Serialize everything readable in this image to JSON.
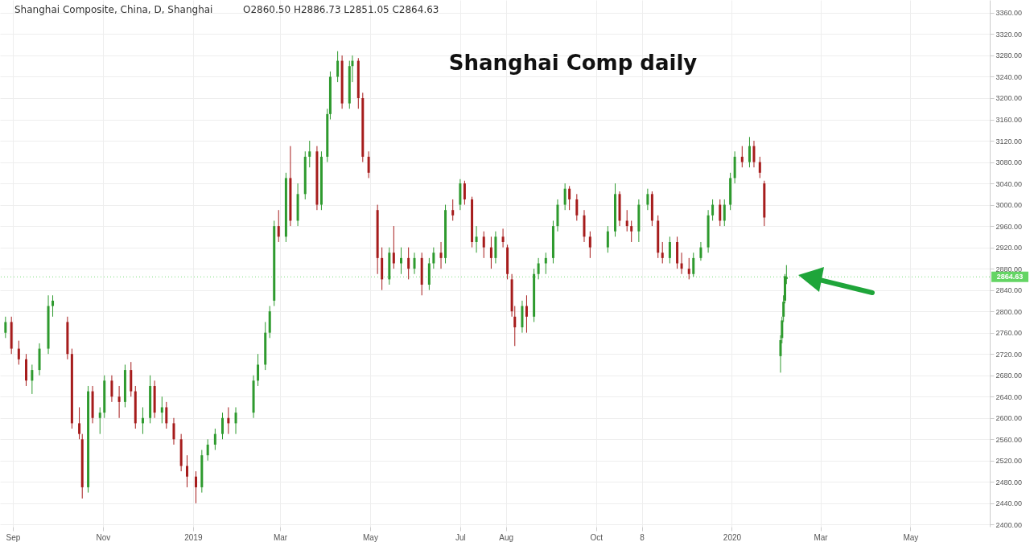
{
  "chart_data": {
    "type": "candlestick",
    "title": "Shanghai Comp daily",
    "annotations": [
      "Shanghai Composite, China, D, Shanghai",
      "O2860.50 H2886.73 L2851.05 C2864.63"
    ],
    "ref_lines": [
      {
        "axis": "y",
        "value": 2864.63,
        "label": "2864.63",
        "color": "#22c322"
      }
    ],
    "colors": [
      "#2e9a2e",
      "#a61c1c",
      "#a61c1c",
      "#a61c1c",
      "#2e9a2e",
      "#2e9a2e",
      "#2e9a2e",
      "#2e9a2e",
      "#a61c1c",
      "#a61c1c",
      "#a61c1c",
      "#a61c1c",
      "#2e9a2e",
      "#a61c1c",
      "#2e9a2e",
      "#2e9a2e",
      "#a61c1c",
      "#a61c1c",
      "#2e9a2e",
      "#a61c1c",
      "#a61c1c",
      "#2e9a2e",
      "#2e9a2e",
      "#a61c1c",
      "#2e9a2e",
      "#a61c1c",
      "#a61c1c",
      "#a61c1c",
      "#a61c1c",
      "#a61c1c",
      "#2e9a2e",
      "#2e9a2e",
      "#2e9a2e",
      "#2e9a2e",
      "#a61c1c",
      "#2e9a2e",
      "#2e9a2e",
      "#2e9a2e",
      "#2e9a2e",
      "#2e9a2e",
      "#2e9a2e",
      "#a61c1c",
      "#2e9a2e",
      "#a61c1c",
      "#2e9a2e",
      "#2e9a2e",
      "#2e9a2e",
      "#a61c1c",
      "#2e9a2e",
      "#2e9a2e",
      "#2e9a2e",
      "#2e9a2e",
      "#a61c1c",
      "#2e9a2e",
      "#2e9a2e",
      "#a61c1c",
      "#a61c1c",
      "#a61c1c",
      "#a61c1c",
      "#a61c1c",
      "#2e9a2e",
      "#a61c1c",
      "#2e9a2e",
      "#a61c1c",
      "#2e9a2e",
      "#a61c1c",
      "#2e9a2e",
      "#2e9a2e",
      "#a61c1c",
      "#2e9a2e",
      "#a61c1c",
      "#2e9a2e",
      "#a61c1c",
      "#a61c1c",
      "#2e9a2e",
      "#a61c1c",
      "#a61c1c",
      "#2e9a2e",
      "#a61c1c",
      "#a61c1c",
      "#a61c1c",
      "#a61c1c",
      "#2e9a2e",
      "#a61c1c",
      "#2e9a2e",
      "#2e9a2e",
      "#2e9a2e",
      "#2e9a2e",
      "#2e9a2e",
      "#2e9a2e",
      "#a61c1c",
      "#a61c1c",
      "#a61c1c",
      "#a61c1c",
      "#2e9a2e",
      "#2e9a2e",
      "#a61c1c",
      "#a61c1c",
      "#a61c1c",
      "#2e9a2e",
      "#2e9a2e",
      "#a61c1c",
      "#a61c1c",
      "#a61c1c",
      "#2e9a2e",
      "#a61c1c",
      "#a61c1c",
      "#a61c1c",
      "#2e9a2e",
      "#2e9a2e",
      "#2e9a2e",
      "#2e9a2e",
      "#a61c1c",
      "#2e9a2e",
      "#2e9a2e",
      "#2e9a2e",
      "#a61c1c",
      "#2e9a2e",
      "#a61c1c",
      "#a61c1c",
      "#a61c1c",
      "#2e9a2e",
      "#2e9a2e",
      "#2e9a2e",
      "#2e9a2e",
      "#2e9a2e"
    ],
    "grid": true,
    "xlim": [
      "2018-08-26",
      "2020-06-21"
    ],
    "xticks": [
      {
        "value": "2018-09-01",
        "label": "Sep"
      },
      {
        "value": "2018-11-01",
        "label": "Nov"
      },
      {
        "value": "2019-01-01",
        "label": "2019"
      },
      {
        "value": "2019-03-01",
        "label": "Mar"
      },
      {
        "value": "2019-05-01",
        "label": "May"
      },
      {
        "value": "2019-07-01",
        "label": "Jul"
      },
      {
        "value": "2019-08-01",
        "label": "Aug"
      },
      {
        "value": "2019-10-01",
        "label": "Oct"
      },
      {
        "value": "2019-11-01",
        "label": "8"
      },
      {
        "value": "2020-01-01",
        "label": "2020"
      },
      {
        "value": "2020-03-01",
        "label": "Mar"
      },
      {
        "value": "2020-05-01",
        "label": "May"
      }
    ],
    "ylim": [
      2396,
      3384
    ],
    "yticks": [
      {
        "value": 2400,
        "label": "2400.00"
      },
      {
        "value": 2440,
        "label": "2440.00"
      },
      {
        "value": 2480,
        "label": "2480.00"
      },
      {
        "value": 2520,
        "label": "2520.00"
      },
      {
        "value": 2560,
        "label": "2560.00"
      },
      {
        "value": 2600,
        "label": "2600.00"
      },
      {
        "value": 2640,
        "label": "2640.00"
      },
      {
        "value": 2680,
        "label": "2680.00"
      },
      {
        "value": 2720,
        "label": "2720.00"
      },
      {
        "value": 2760,
        "label": "2760.00"
      },
      {
        "value": 2800,
        "label": "2800.00"
      },
      {
        "value": 2840,
        "label": "2840.00"
      },
      {
        "value": 2880,
        "label": "2880.00"
      },
      {
        "value": 2920,
        "label": "2920.00"
      },
      {
        "value": 2960,
        "label": "2960.00"
      },
      {
        "value": 3000,
        "label": "3000.00"
      },
      {
        "value": 3040,
        "label": "3040.00"
      },
      {
        "value": 3080,
        "label": "3080.00"
      },
      {
        "value": 3120,
        "label": "3120.00"
      },
      {
        "value": 3160,
        "label": "3160.00"
      },
      {
        "value": 3200,
        "label": "3200.00"
      },
      {
        "value": 3240,
        "label": "3240.00"
      },
      {
        "value": 3280,
        "label": "3280.00"
      },
      {
        "value": 3320,
        "label": "3320.00"
      },
      {
        "value": 3360,
        "label": "3360.00"
      }
    ],
    "x": [
      "2018-08-27",
      "2018-08-31",
      "2018-09-05",
      "2018-09-10",
      "2018-09-14",
      "2018-09-19",
      "2018-09-25",
      "2018-09-28",
      "2018-10-08",
      "2018-10-11",
      "2018-10-16",
      "2018-10-18",
      "2018-10-22",
      "2018-10-25",
      "2018-10-30",
      "2018-11-02",
      "2018-11-07",
      "2018-11-12",
      "2018-11-16",
      "2018-11-20",
      "2018-11-23",
      "2018-11-28",
      "2018-12-03",
      "2018-12-06",
      "2018-12-11",
      "2018-12-14",
      "2018-12-19",
      "2018-12-24",
      "2018-12-28",
      "2019-01-03",
      "2019-01-07",
      "2019-01-11",
      "2019-01-16",
      "2019-01-21",
      "2019-01-25",
      "2019-01-30",
      "2019-02-11",
      "2019-02-14",
      "2019-02-19",
      "2019-02-22",
      "2019-02-25",
      "2019-02-28",
      "2019-03-05",
      "2019-03-08",
      "2019-03-13",
      "2019-03-18",
      "2019-03-21",
      "2019-03-26",
      "2019-03-29",
      "2019-04-02",
      "2019-04-04",
      "2019-04-09",
      "2019-04-12",
      "2019-04-17",
      "2019-04-19",
      "2019-04-23",
      "2019-04-26",
      "2019-04-30",
      "2019-05-06",
      "2019-05-09",
      "2019-05-14",
      "2019-05-17",
      "2019-05-22",
      "2019-05-27",
      "2019-05-31",
      "2019-06-05",
      "2019-06-10",
      "2019-06-13",
      "2019-06-18",
      "2019-06-21",
      "2019-06-26",
      "2019-07-01",
      "2019-07-04",
      "2019-07-09",
      "2019-07-12",
      "2019-07-17",
      "2019-07-22",
      "2019-07-25",
      "2019-07-30",
      "2019-08-02",
      "2019-08-05",
      "2019-08-07",
      "2019-08-12",
      "2019-08-15",
      "2019-08-20",
      "2019-08-23",
      "2019-08-28",
      "2019-09-02",
      "2019-09-05",
      "2019-09-10",
      "2019-09-13",
      "2019-09-18",
      "2019-09-23",
      "2019-09-27",
      "2019-10-09",
      "2019-10-14",
      "2019-10-17",
      "2019-10-22",
      "2019-10-25",
      "2019-10-30",
      "2019-11-05",
      "2019-11-08",
      "2019-11-12",
      "2019-11-15",
      "2019-11-20",
      "2019-11-25",
      "2019-11-28",
      "2019-12-03",
      "2019-12-06",
      "2019-12-11",
      "2019-12-16",
      "2019-12-19",
      "2019-12-24",
      "2019-12-27",
      "2019-12-31",
      "2020-01-03",
      "2020-01-08",
      "2020-01-13",
      "2020-01-16",
      "2020-01-20",
      "2020-01-23",
      "2020-02-03",
      "2020-02-04",
      "2020-02-05",
      "2020-02-06",
      "2020-02-07"
    ],
    "ohlc": [
      [
        2760,
        2790,
        2750,
        2780
      ],
      [
        2780,
        2790,
        2720,
        2730
      ],
      [
        2730,
        2745,
        2700,
        2710
      ],
      [
        2710,
        2720,
        2660,
        2670
      ],
      [
        2670,
        2700,
        2645,
        2690
      ],
      [
        2690,
        2740,
        2680,
        2730
      ],
      [
        2730,
        2830,
        2720,
        2810
      ],
      [
        2810,
        2830,
        2790,
        2820
      ],
      [
        2780,
        2790,
        2710,
        2720
      ],
      [
        2720,
        2730,
        2580,
        2590
      ],
      [
        2590,
        2620,
        2560,
        2570
      ],
      [
        2560,
        2570,
        2449,
        2470
      ],
      [
        2470,
        2660,
        2460,
        2650
      ],
      [
        2650,
        2660,
        2590,
        2600
      ],
      [
        2600,
        2620,
        2570,
        2610
      ],
      [
        2610,
        2680,
        2600,
        2670
      ],
      [
        2670,
        2680,
        2630,
        2640
      ],
      [
        2640,
        2660,
        2600,
        2630
      ],
      [
        2630,
        2700,
        2620,
        2690
      ],
      [
        2690,
        2705,
        2640,
        2650
      ],
      [
        2650,
        2660,
        2580,
        2590
      ],
      [
        2590,
        2620,
        2570,
        2600
      ],
      [
        2600,
        2680,
        2590,
        2660
      ],
      [
        2660,
        2670,
        2600,
        2610
      ],
      [
        2610,
        2640,
        2590,
        2620
      ],
      [
        2620,
        2630,
        2580,
        2590
      ],
      [
        2590,
        2600,
        2550,
        2560
      ],
      [
        2560,
        2570,
        2500,
        2510
      ],
      [
        2510,
        2530,
        2470,
        2490
      ],
      [
        2490,
        2500,
        2440,
        2470
      ],
      [
        2470,
        2540,
        2460,
        2530
      ],
      [
        2530,
        2560,
        2520,
        2550
      ],
      [
        2550,
        2580,
        2540,
        2570
      ],
      [
        2570,
        2610,
        2560,
        2600
      ],
      [
        2600,
        2620,
        2570,
        2590
      ],
      [
        2590,
        2620,
        2570,
        2610
      ],
      [
        2610,
        2680,
        2600,
        2670
      ],
      [
        2670,
        2720,
        2660,
        2700
      ],
      [
        2700,
        2780,
        2690,
        2760
      ],
      [
        2760,
        2810,
        2750,
        2800
      ],
      [
        2820,
        2970,
        2810,
        2960
      ],
      [
        2960,
        2990,
        2930,
        2940
      ],
      [
        2940,
        3060,
        2930,
        3050
      ],
      [
        3050,
        3110,
        2960,
        2970
      ],
      [
        2970,
        3040,
        2960,
        3020
      ],
      [
        3020,
        3100,
        3010,
        3090
      ],
      [
        3090,
        3120,
        3070,
        3100
      ],
      [
        3100,
        3110,
        2990,
        3000
      ],
      [
        3000,
        3100,
        2990,
        3090
      ],
      [
        3090,
        3180,
        3080,
        3170
      ],
      [
        3170,
        3250,
        3160,
        3240
      ],
      [
        3240,
        3288,
        3230,
        3270
      ],
      [
        3270,
        3280,
        3180,
        3190
      ],
      [
        3190,
        3270,
        3180,
        3260
      ],
      [
        3260,
        3280,
        3230,
        3270
      ],
      [
        3270,
        3275,
        3180,
        3200
      ],
      [
        3200,
        3210,
        3080,
        3090
      ],
      [
        3090,
        3100,
        3050,
        3060
      ],
      [
        2990,
        3000,
        2870,
        2900
      ],
      [
        2900,
        2920,
        2840,
        2860
      ],
      [
        2860,
        2920,
        2850,
        2910
      ],
      [
        2910,
        2960,
        2880,
        2890
      ],
      [
        2890,
        2920,
        2870,
        2900
      ],
      [
        2900,
        2920,
        2860,
        2880
      ],
      [
        2880,
        2910,
        2870,
        2900
      ],
      [
        2900,
        2910,
        2830,
        2850
      ],
      [
        2850,
        2900,
        2840,
        2890
      ],
      [
        2890,
        2920,
        2880,
        2910
      ],
      [
        2910,
        2930,
        2880,
        2900
      ],
      [
        2900,
        3000,
        2890,
        2990
      ],
      [
        2990,
        3010,
        2970,
        2980
      ],
      [
        3000,
        3048,
        2990,
        3040
      ],
      [
        3040,
        3045,
        3000,
        3010
      ],
      [
        3010,
        3015,
        2920,
        2930
      ],
      [
        2930,
        2960,
        2910,
        2940
      ],
      [
        2940,
        2950,
        2900,
        2920
      ],
      [
        2920,
        2940,
        2880,
        2900
      ],
      [
        2900,
        2950,
        2890,
        2940
      ],
      [
        2940,
        2955,
        2920,
        2930
      ],
      [
        2920,
        2925,
        2860,
        2870
      ],
      [
        2860,
        2870,
        2790,
        2800
      ],
      [
        2790,
        2810,
        2735,
        2770
      ],
      [
        2770,
        2820,
        2760,
        2810
      ],
      [
        2810,
        2830,
        2760,
        2790
      ],
      [
        2790,
        2880,
        2780,
        2870
      ],
      [
        2870,
        2900,
        2860,
        2890
      ],
      [
        2890,
        2910,
        2870,
        2900
      ],
      [
        2900,
        2970,
        2890,
        2960
      ],
      [
        2960,
        3010,
        2950,
        3000
      ],
      [
        3000,
        3040,
        2990,
        3030
      ],
      [
        3030,
        3035,
        2990,
        3010
      ],
      [
        3010,
        3020,
        2970,
        2980
      ],
      [
        2980,
        2990,
        2930,
        2940
      ],
      [
        2940,
        2950,
        2900,
        2920
      ],
      [
        2920,
        2960,
        2910,
        2950
      ],
      [
        2950,
        3040,
        2940,
        3020
      ],
      [
        3020,
        3025,
        2960,
        2970
      ],
      [
        2970,
        2990,
        2950,
        2960
      ],
      [
        2960,
        2970,
        2930,
        2950
      ],
      [
        2950,
        3010,
        2930,
        3000
      ],
      [
        3000,
        3030,
        2990,
        3020
      ],
      [
        3020,
        3025,
        2960,
        2970
      ],
      [
        2970,
        2980,
        2900,
        2910
      ],
      [
        2910,
        2930,
        2890,
        2900
      ],
      [
        2900,
        2940,
        2890,
        2930
      ],
      [
        2930,
        2940,
        2880,
        2890
      ],
      [
        2890,
        2910,
        2870,
        2880
      ],
      [
        2880,
        2900,
        2860,
        2870
      ],
      [
        2870,
        2910,
        2865,
        2900
      ],
      [
        2900,
        2930,
        2895,
        2920
      ],
      [
        2920,
        2990,
        2910,
        2980
      ],
      [
        2980,
        3010,
        2970,
        3000
      ],
      [
        3000,
        3010,
        2960,
        2970
      ],
      [
        2970,
        3010,
        2960,
        3000
      ],
      [
        3000,
        3060,
        2990,
        3050
      ],
      [
        3050,
        3100,
        3040,
        3090
      ],
      [
        3090,
        3110,
        3070,
        3080
      ],
      [
        3080,
        3127,
        3070,
        3110
      ],
      [
        3110,
        3120,
        3070,
        3080
      ],
      [
        3080,
        3090,
        3050,
        3060
      ],
      [
        3040,
        3045,
        2960,
        2976
      ],
      [
        2716,
        2755,
        2685,
        2746
      ],
      [
        2750,
        2790,
        2740,
        2783
      ],
      [
        2790,
        2830,
        2780,
        2818
      ],
      [
        2820,
        2870,
        2815,
        2866
      ],
      [
        2860.5,
        2886.73,
        2851.05,
        2864.63
      ]
    ]
  }
}
